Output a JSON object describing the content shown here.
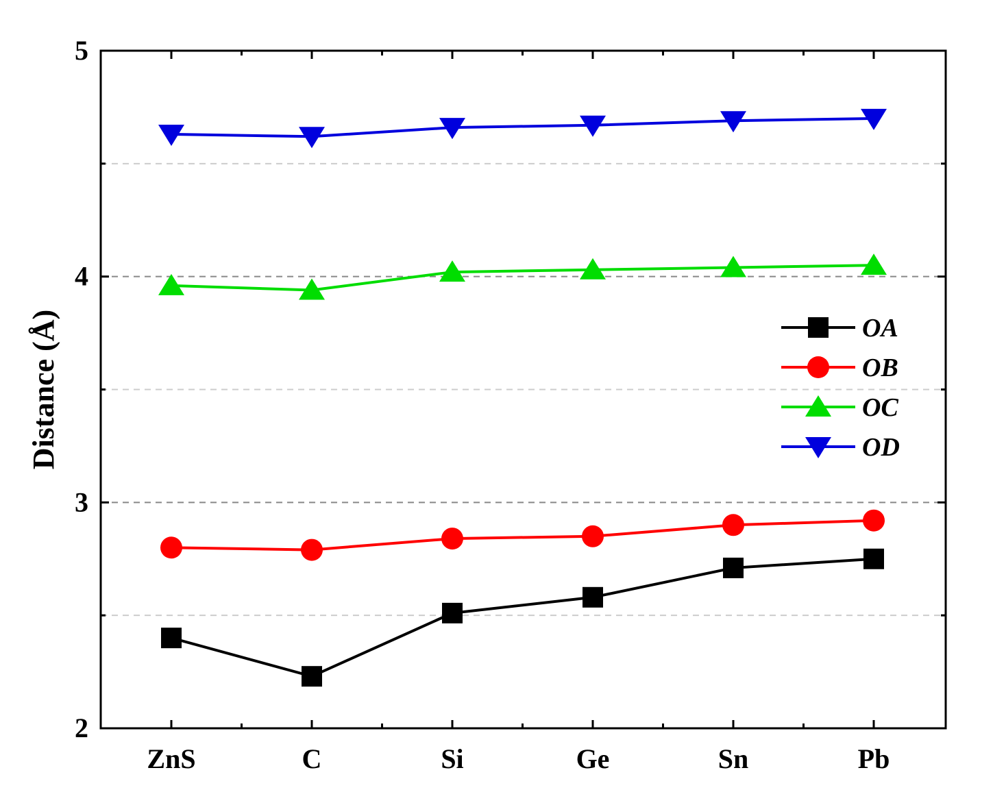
{
  "chart_data": {
    "type": "line",
    "categories": [
      "ZnS",
      "C",
      "Si",
      "Ge",
      "Sn",
      "Pb"
    ],
    "xlabel": "",
    "ylabel": "Distance (Å)",
    "ylim": [
      2,
      5
    ],
    "yticks": [
      2,
      3,
      4,
      5
    ],
    "grid": "horizontal dashed at 2.5, 3, 3.5, 4, 4.5",
    "legend_position": "right",
    "series": [
      {
        "name": "OA",
        "color": "#000000",
        "marker": "square",
        "values": [
          2.4,
          2.23,
          2.51,
          2.58,
          2.71,
          2.75
        ]
      },
      {
        "name": "OB",
        "color": "#ff0000",
        "marker": "circle",
        "values": [
          2.8,
          2.79,
          2.84,
          2.85,
          2.9,
          2.92
        ]
      },
      {
        "name": "OC",
        "color": "#00dd00",
        "marker": "triangle-up",
        "values": [
          3.96,
          3.94,
          4.02,
          4.03,
          4.04,
          4.05
        ]
      },
      {
        "name": "OD",
        "color": "#0000dd",
        "marker": "triangle-down",
        "values": [
          4.63,
          4.62,
          4.66,
          4.67,
          4.69,
          4.7
        ]
      }
    ]
  }
}
